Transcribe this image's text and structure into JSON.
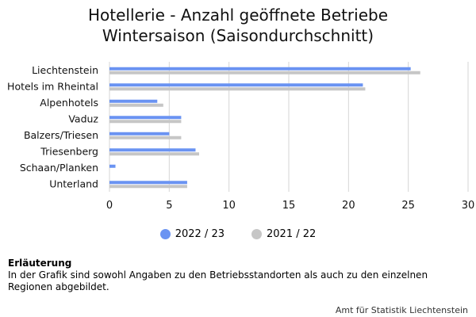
{
  "title_lines": [
    "Hotellerie - Anzahl geöffnete Betriebe",
    "Wintersaison (Saisondurchschnitt)"
  ],
  "chart_data": {
    "type": "bar",
    "orientation": "horizontal",
    "categories": [
      "Liechtenstein",
      "Hotels im Rheintal",
      "Alpenhotels",
      "Vaduz",
      "Balzers/Triesen",
      "Triesenberg",
      "Schaan/Planken",
      "Unterland"
    ],
    "series": [
      {
        "name": "2022 / 23",
        "color": "#6a93f2",
        "values": [
          25.2,
          21.2,
          4.0,
          6.0,
          5.0,
          7.2,
          0.5,
          6.5
        ]
      },
      {
        "name": "2021 / 22",
        "color": "#c6c6c6",
        "values": [
          26.0,
          21.4,
          4.5,
          6.0,
          6.0,
          7.5,
          0.0,
          6.5
        ]
      }
    ],
    "xlim": [
      0,
      30
    ],
    "xticks": [
      "0",
      "5",
      "10",
      "15",
      "20",
      "25",
      "30"
    ],
    "grid": true,
    "legend_position": "bottom"
  },
  "footnote": {
    "heading": "Erläuterung",
    "text": "In der Grafik sind sowohl Angaben zu den Betriebsstandorten als auch zu den einzelnen Regionen abgebildet."
  },
  "source": "Amt für Statistik Liechtenstein"
}
